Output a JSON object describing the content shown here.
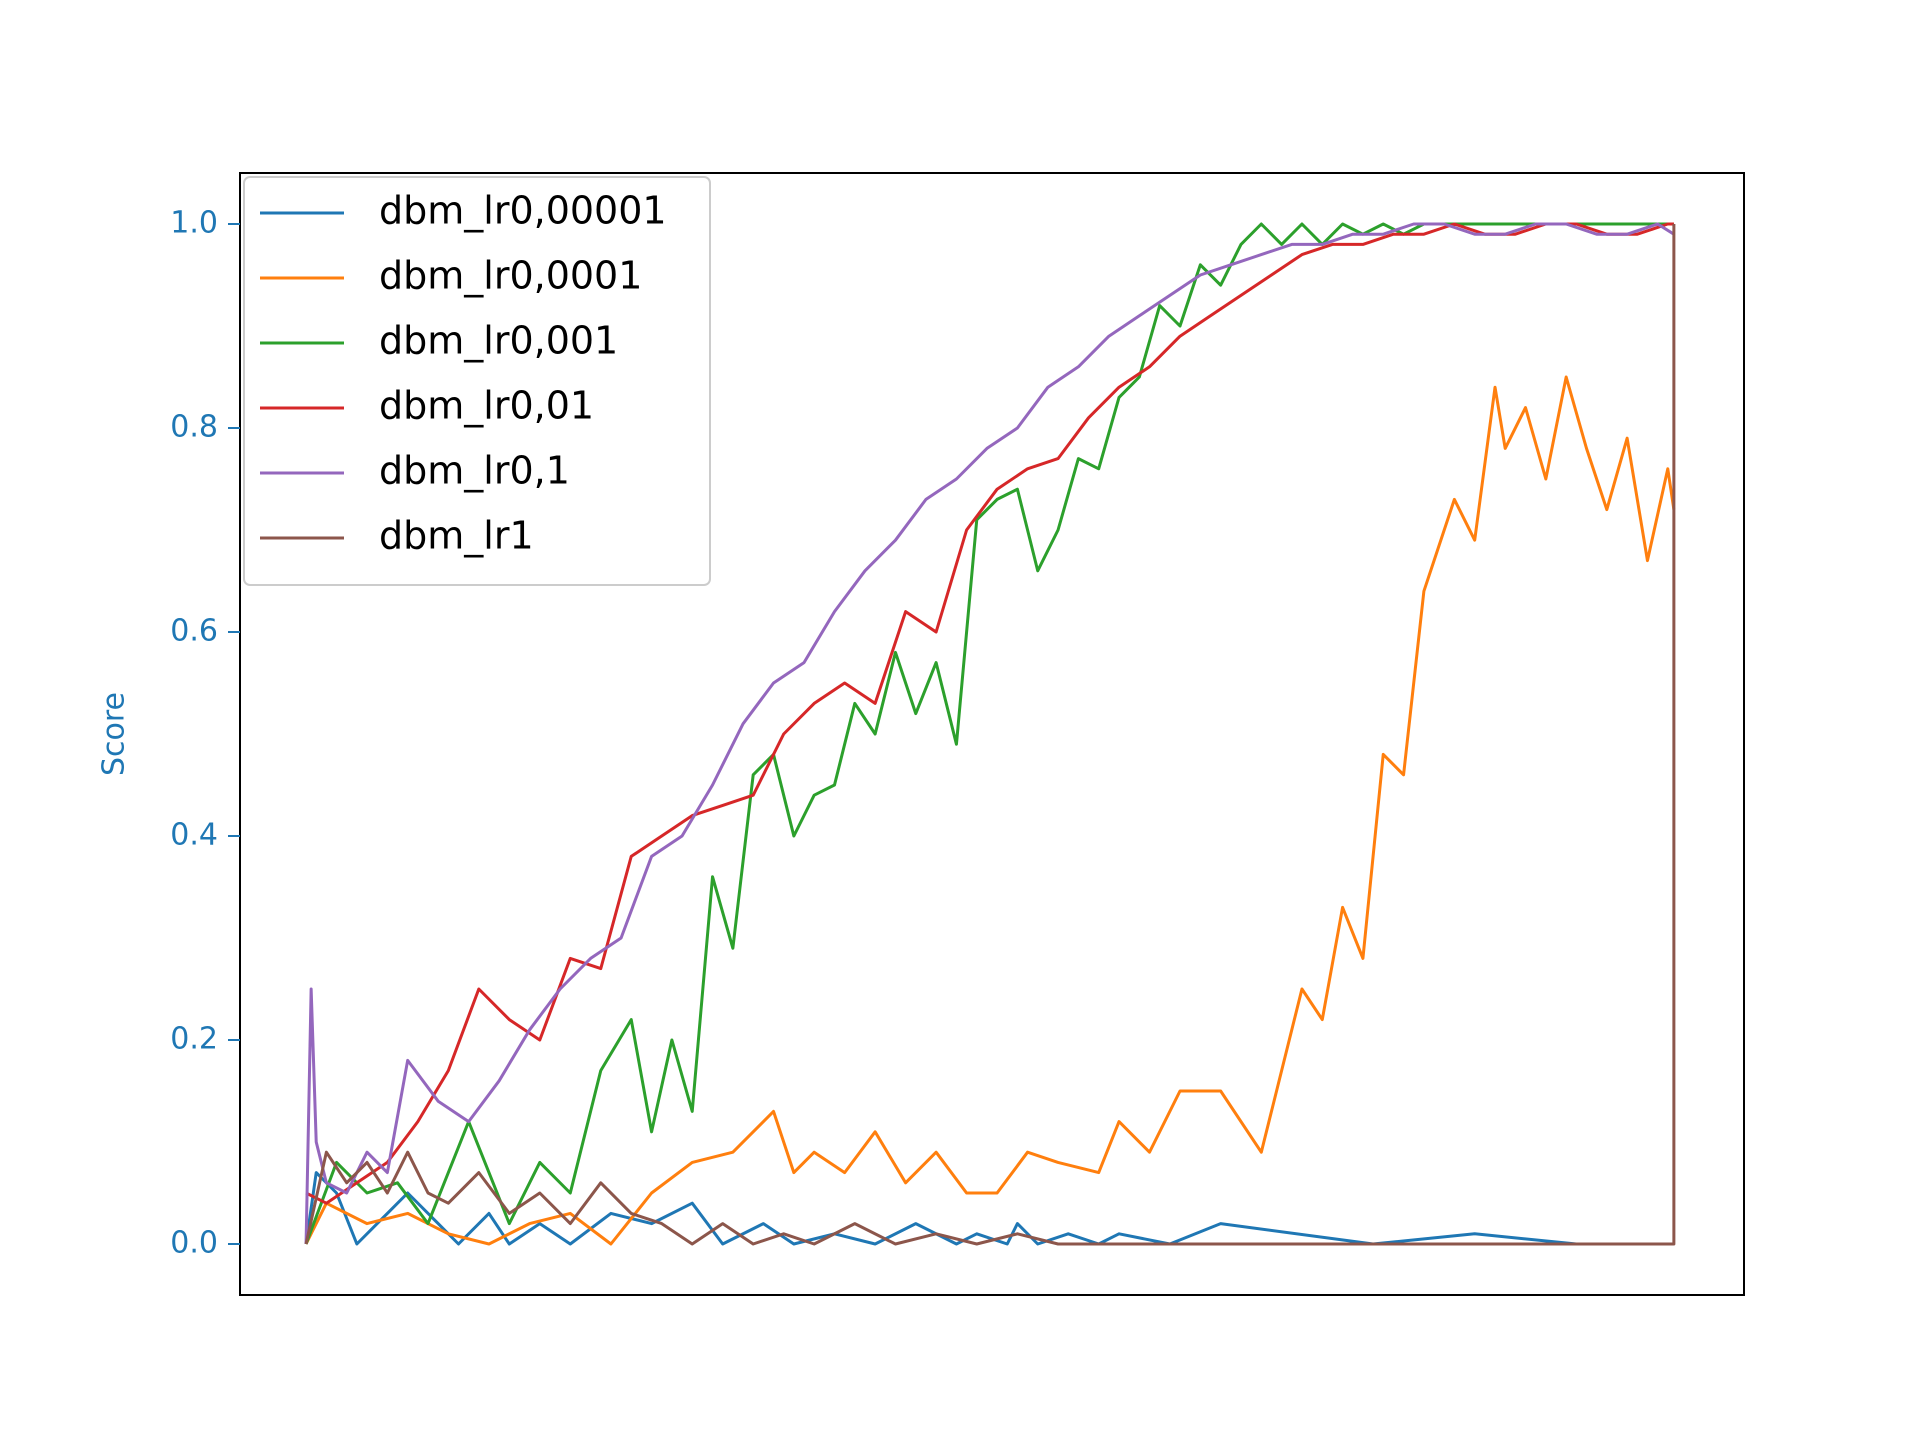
{
  "chart_data": {
    "type": "line",
    "title": "",
    "xlabel": "",
    "ylabel": "Score",
    "ylim": [
      -0.05,
      1.05
    ],
    "xlim": [
      -65,
      1415
    ],
    "yticks": [
      0.0,
      0.2,
      0.4,
      0.6,
      0.8,
      1.0
    ],
    "ytick_labels": [
      "0.0",
      "0.2",
      "0.4",
      "0.6",
      "0.8",
      "1.0"
    ],
    "x_ticks_shown": false,
    "grid": false,
    "legend_position": "top-left",
    "axis_color": "#1f77b4",
    "series": [
      {
        "name": "dbm_lr0,00001",
        "color": "#1f77b4",
        "x": [
          0,
          10,
          30,
          50,
          80,
          100,
          130,
          150,
          180,
          200,
          230,
          260,
          300,
          340,
          380,
          410,
          450,
          480,
          520,
          560,
          600,
          640,
          660,
          690,
          700,
          720,
          750,
          780,
          800,
          850,
          900,
          1050,
          1150,
          1250,
          1300,
          1340,
          1345,
          1346
        ],
        "values": [
          0.0,
          0.07,
          0.05,
          0.0,
          0.03,
          0.05,
          0.02,
          0.0,
          0.03,
          0.0,
          0.02,
          0.0,
          0.03,
          0.02,
          0.04,
          0.0,
          0.02,
          0.0,
          0.01,
          0.0,
          0.02,
          0.0,
          0.01,
          0.0,
          0.02,
          0.0,
          0.01,
          0.0,
          0.01,
          0.0,
          0.02,
          0.0,
          0.01,
          0.0,
          0.0,
          0.0,
          0.0,
          0.0
        ]
      },
      {
        "name": "dbm_lr0,0001",
        "color": "#ff7f0e",
        "x": [
          0,
          20,
          60,
          100,
          140,
          180,
          220,
          260,
          300,
          340,
          380,
          420,
          460,
          480,
          500,
          530,
          560,
          590,
          620,
          650,
          680,
          710,
          740,
          780,
          800,
          830,
          860,
          900,
          940,
          980,
          1000,
          1020,
          1040,
          1060,
          1080,
          1100,
          1110,
          1130,
          1150,
          1170,
          1180,
          1200,
          1220,
          1240,
          1260,
          1280,
          1300,
          1320,
          1340,
          1346
        ],
        "values": [
          0.0,
          0.04,
          0.02,
          0.03,
          0.01,
          0.0,
          0.02,
          0.03,
          0.0,
          0.05,
          0.08,
          0.09,
          0.13,
          0.07,
          0.09,
          0.07,
          0.11,
          0.06,
          0.09,
          0.05,
          0.05,
          0.09,
          0.08,
          0.07,
          0.12,
          0.09,
          0.15,
          0.15,
          0.09,
          0.25,
          0.22,
          0.33,
          0.28,
          0.48,
          0.46,
          0.64,
          0.67,
          0.73,
          0.69,
          0.84,
          0.78,
          0.82,
          0.75,
          0.85,
          0.78,
          0.72,
          0.79,
          0.67,
          0.76,
          0.72
        ]
      },
      {
        "name": "dbm_lr0,001",
        "color": "#2ca02c",
        "x": [
          0,
          30,
          60,
          90,
          120,
          160,
          200,
          230,
          260,
          290,
          320,
          340,
          360,
          380,
          400,
          420,
          440,
          460,
          480,
          500,
          520,
          540,
          560,
          580,
          600,
          620,
          640,
          660,
          680,
          700,
          720,
          740,
          760,
          780,
          800,
          820,
          840,
          860,
          880,
          900,
          920,
          940,
          960,
          980,
          1000,
          1020,
          1040,
          1060,
          1080,
          1100,
          1120,
          1140,
          1160,
          1180,
          1200,
          1220,
          1240,
          1260,
          1280,
          1300,
          1320,
          1346
        ],
        "values": [
          0.0,
          0.08,
          0.05,
          0.06,
          0.02,
          0.12,
          0.02,
          0.08,
          0.05,
          0.17,
          0.22,
          0.11,
          0.2,
          0.13,
          0.36,
          0.29,
          0.46,
          0.48,
          0.4,
          0.44,
          0.45,
          0.53,
          0.5,
          0.58,
          0.52,
          0.57,
          0.49,
          0.71,
          0.73,
          0.74,
          0.66,
          0.7,
          0.77,
          0.76,
          0.83,
          0.85,
          0.92,
          0.9,
          0.96,
          0.94,
          0.98,
          1.0,
          0.98,
          1.0,
          0.98,
          1.0,
          0.99,
          1.0,
          0.99,
          1.0,
          1.0,
          1.0,
          1.0,
          1.0,
          1.0,
          1.0,
          1.0,
          1.0,
          1.0,
          1.0,
          1.0,
          1.0
        ]
      },
      {
        "name": "dbm_lr0,01",
        "color": "#d62728",
        "x": [
          0,
          20,
          50,
          80,
          110,
          140,
          170,
          200,
          230,
          260,
          290,
          320,
          350,
          380,
          410,
          440,
          470,
          500,
          530,
          560,
          590,
          620,
          650,
          680,
          710,
          740,
          770,
          800,
          830,
          860,
          890,
          920,
          950,
          980,
          1010,
          1040,
          1070,
          1100,
          1130,
          1160,
          1190,
          1220,
          1250,
          1280,
          1310,
          1340,
          1346
        ],
        "values": [
          0.05,
          0.04,
          0.06,
          0.08,
          0.12,
          0.17,
          0.25,
          0.22,
          0.2,
          0.28,
          0.27,
          0.38,
          0.4,
          0.42,
          0.43,
          0.44,
          0.5,
          0.53,
          0.55,
          0.53,
          0.62,
          0.6,
          0.7,
          0.74,
          0.76,
          0.77,
          0.81,
          0.84,
          0.86,
          0.89,
          0.91,
          0.93,
          0.95,
          0.97,
          0.98,
          0.98,
          0.99,
          0.99,
          1.0,
          0.99,
          0.99,
          1.0,
          1.0,
          0.99,
          0.99,
          1.0,
          1.0
        ]
      },
      {
        "name": "dbm_lr0,1",
        "color": "#9467bd",
        "x": [
          0,
          5,
          10,
          20,
          40,
          60,
          80,
          100,
          130,
          160,
          190,
          220,
          250,
          280,
          310,
          340,
          370,
          400,
          430,
          460,
          490,
          520,
          550,
          580,
          610,
          640,
          670,
          700,
          730,
          760,
          790,
          820,
          850,
          880,
          910,
          940,
          970,
          1000,
          1030,
          1060,
          1090,
          1120,
          1150,
          1180,
          1210,
          1240,
          1270,
          1300,
          1330,
          1346
        ],
        "values": [
          0.0,
          0.25,
          0.1,
          0.06,
          0.05,
          0.09,
          0.07,
          0.18,
          0.14,
          0.12,
          0.16,
          0.21,
          0.25,
          0.28,
          0.3,
          0.38,
          0.4,
          0.45,
          0.51,
          0.55,
          0.57,
          0.62,
          0.66,
          0.69,
          0.73,
          0.75,
          0.78,
          0.8,
          0.84,
          0.86,
          0.89,
          0.91,
          0.93,
          0.95,
          0.96,
          0.97,
          0.98,
          0.98,
          0.99,
          0.99,
          1.0,
          1.0,
          0.99,
          0.99,
          1.0,
          1.0,
          0.99,
          0.99,
          1.0,
          0.99
        ]
      },
      {
        "name": "dbm_lr1",
        "color": "#8c564b",
        "x": [
          0,
          20,
          40,
          60,
          80,
          100,
          120,
          140,
          170,
          200,
          230,
          260,
          290,
          320,
          350,
          380,
          410,
          440,
          470,
          500,
          540,
          580,
          620,
          660,
          700,
          740,
          780,
          820,
          860,
          900,
          960,
          1020,
          1100,
          1200,
          1300,
          1345,
          1346,
          1346
        ],
        "values": [
          0.0,
          0.09,
          0.06,
          0.08,
          0.05,
          0.09,
          0.05,
          0.04,
          0.07,
          0.03,
          0.05,
          0.02,
          0.06,
          0.03,
          0.02,
          0.0,
          0.02,
          0.0,
          0.01,
          0.0,
          0.02,
          0.0,
          0.01,
          0.0,
          0.01,
          0.0,
          0.0,
          0.0,
          0.0,
          0.0,
          0.0,
          0.0,
          0.0,
          0.0,
          0.0,
          0.0,
          0.0,
          1.0
        ]
      }
    ]
  }
}
